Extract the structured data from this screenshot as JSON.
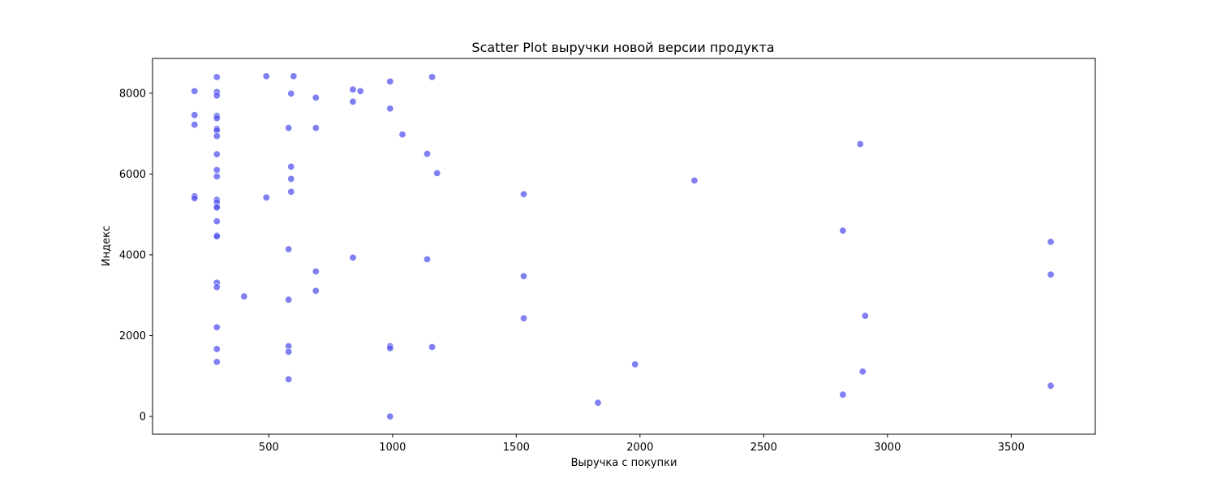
{
  "chart_data": {
    "type": "scatter",
    "title": "Scatter Plot выручки новой версии продукта",
    "xlabel": "Выручка с покупки",
    "ylabel": "Индекс",
    "xlim": [
      30,
      3840
    ],
    "ylim": [
      -440,
      8860
    ],
    "x_ticks": [
      500,
      1000,
      1500,
      2000,
      2500,
      3000,
      3500
    ],
    "y_ticks": [
      0,
      2000,
      4000,
      6000,
      8000
    ],
    "grid": false,
    "legend": "none",
    "marker_color": "#5555ee",
    "marker_opacity": 0.75,
    "series": [
      {
        "x": [
          200,
          290,
          290,
          290,
          490,
          600,
          1160,
          990,
          840,
          870,
          590,
          690,
          840,
          990,
          200,
          290,
          290,
          200,
          580,
          690,
          290,
          290,
          290,
          1040,
          290,
          1140,
          590,
          290,
          290,
          1180,
          590,
          590,
          200,
          200,
          490,
          290,
          290,
          290,
          290,
          2890,
          2220,
          1530,
          290,
          290,
          290,
          580,
          840,
          1140,
          690,
          290,
          290,
          400,
          580,
          690,
          1530,
          1530,
          290,
          290,
          580,
          580,
          290,
          990,
          990,
          1160,
          1980,
          580,
          1830,
          990,
          2820,
          2910,
          2900,
          2820,
          3660,
          3660,
          3660
        ],
        "y": [
          8050,
          8400,
          8030,
          7940,
          8420,
          8420,
          8400,
          8290,
          8090,
          8050,
          7990,
          7890,
          7790,
          7620,
          7460,
          7440,
          7380,
          7220,
          7140,
          7140,
          7120,
          7080,
          6940,
          6980,
          6490,
          6500,
          6180,
          6100,
          5940,
          6020,
          5880,
          5560,
          5450,
          5400,
          5420,
          5360,
          5300,
          5200,
          5170,
          6740,
          5840,
          5500,
          4830,
          4480,
          4460,
          4140,
          3930,
          3890,
          3590,
          3310,
          3200,
          2970,
          2890,
          3110,
          3470,
          2430,
          2210,
          1670,
          1740,
          1600,
          1350,
          1740,
          1690,
          1720,
          1290,
          920,
          340,
          0,
          4600,
          2490,
          1110,
          540,
          4320,
          3510,
          760
        ]
      }
    ]
  }
}
